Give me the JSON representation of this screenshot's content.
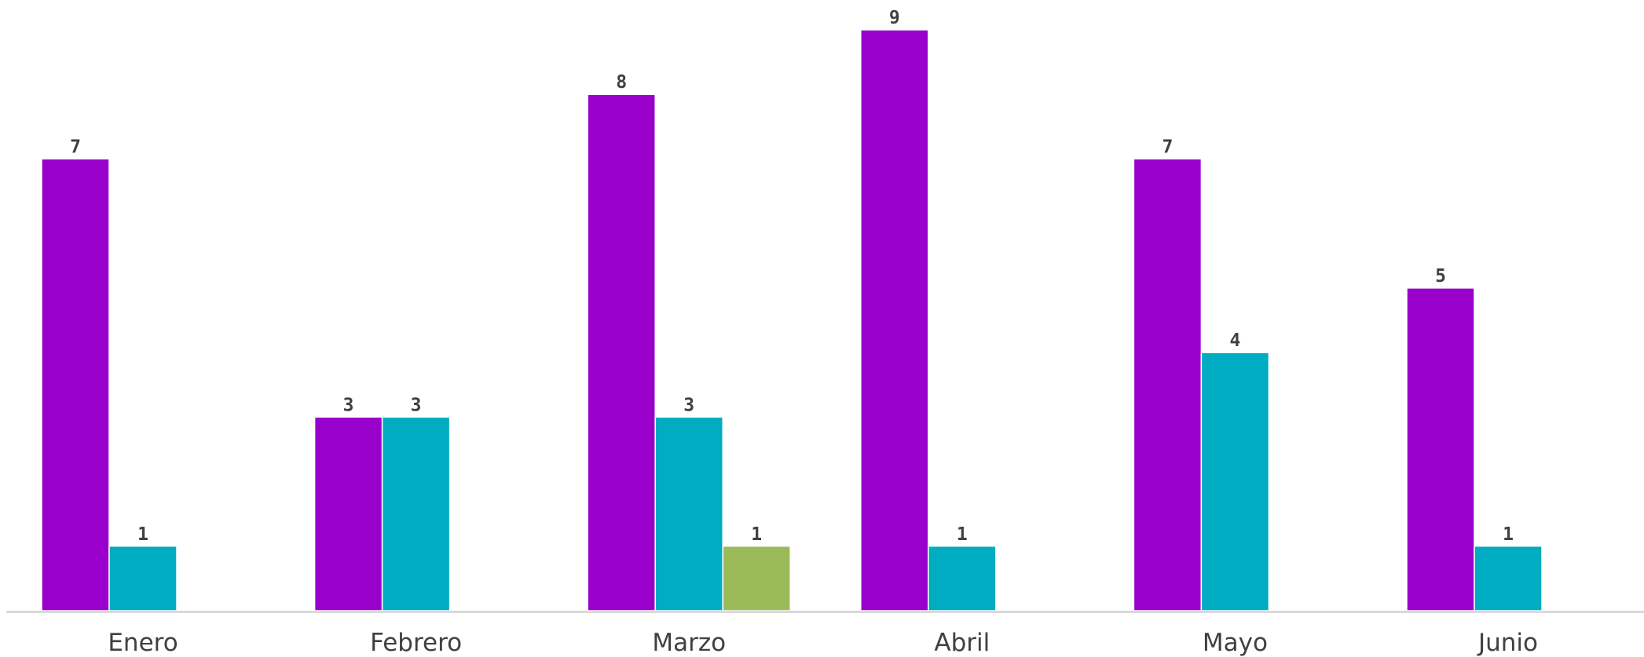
{
  "chart_data": {
    "type": "bar",
    "title": "",
    "xlabel": "",
    "ylabel": "",
    "categories": [
      "Enero",
      "Febrero",
      "Marzo",
      "Abril",
      "Mayo",
      "Junio"
    ],
    "series": [
      {
        "values": [
          7,
          3,
          8,
          9,
          7,
          5
        ],
        "color": "#9900CC"
      },
      {
        "values": [
          1,
          3,
          3,
          1,
          4,
          1
        ],
        "color": "#00ACC1"
      },
      {
        "values": [
          null,
          null,
          1,
          null,
          null,
          null
        ],
        "color": "#9BBB59"
      }
    ],
    "ylim": [
      0,
      9
    ],
    "grid": false,
    "legend": "none",
    "data_labels": true
  }
}
